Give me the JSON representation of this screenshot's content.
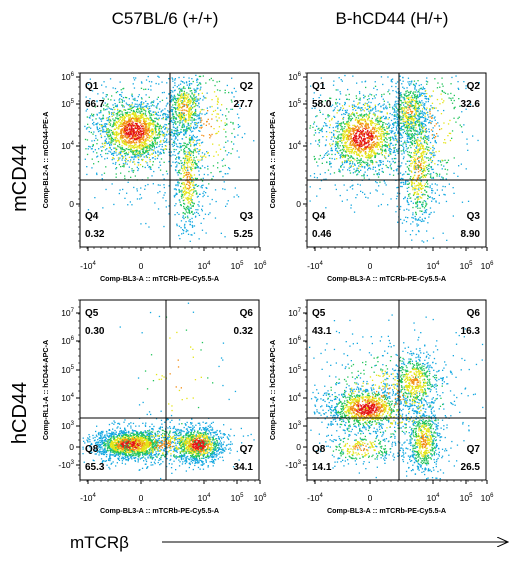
{
  "column_titles": [
    "C57BL/6 (+/+)",
    "B-hCD44 (H/+)"
  ],
  "row_titles": [
    "mCD44",
    "hCD44"
  ],
  "x_axis_arrow_label": "mTCRβ",
  "chart_data": [
    {
      "type": "scatter",
      "name": "C57BL/6 mCD44 vs mTCRb",
      "xlabel": "Comp-BL3-A :: mTCRb-PE-Cy5.5-A",
      "ylabel": "Comp-BL2-A :: mCD44-PE-A",
      "x_ticks": [
        "-10^4",
        "0",
        "10^4",
        "10^5",
        "10^6"
      ],
      "y_ticks": [
        "10^6",
        "10^5",
        "10^4",
        "0"
      ],
      "quadrants": [
        {
          "name": "Q1",
          "value": "66.7",
          "pos": "top-left"
        },
        {
          "name": "Q2",
          "value": "27.7",
          "pos": "top-right"
        },
        {
          "name": "Q3",
          "value": "5.25",
          "pos": "bottom-right"
        },
        {
          "name": "Q4",
          "value": "0.32",
          "pos": "bottom-left"
        }
      ]
    },
    {
      "type": "scatter",
      "name": "B-hCD44 mCD44 vs mTCRb",
      "xlabel": "Comp-BL3-A :: mTCRb-PE-Cy5.5-A",
      "ylabel": "Comp-BL2-A :: mCD44-PE-A",
      "x_ticks": [
        "-10^4",
        "0",
        "10^4",
        "10^5",
        "10^6"
      ],
      "y_ticks": [
        "10^6",
        "10^5",
        "10^4",
        "0"
      ],
      "quadrants": [
        {
          "name": "Q1",
          "value": "58.0",
          "pos": "top-left"
        },
        {
          "name": "Q2",
          "value": "32.6",
          "pos": "top-right"
        },
        {
          "name": "Q3",
          "value": "8.90",
          "pos": "bottom-right"
        },
        {
          "name": "Q4",
          "value": "0.46",
          "pos": "bottom-left"
        }
      ]
    },
    {
      "type": "scatter",
      "name": "C57BL/6 hCD44 vs mTCRb",
      "xlabel": "Comp-BL3-A :: mTCRb-PE-Cy5.5-A",
      "ylabel": "Comp-RL1-A :: hCD44-APC-A",
      "x_ticks": [
        "-10^4",
        "0",
        "10^4",
        "10^5",
        "10^6"
      ],
      "y_ticks": [
        "10^7",
        "10^6",
        "10^5",
        "10^4",
        "10^3",
        "0",
        "-10^3"
      ],
      "quadrants": [
        {
          "name": "Q5",
          "value": "0.30",
          "pos": "top-left"
        },
        {
          "name": "Q6",
          "value": "0.32",
          "pos": "top-right"
        },
        {
          "name": "Q7",
          "value": "34.1",
          "pos": "bottom-right"
        },
        {
          "name": "Q8",
          "value": "65.3",
          "pos": "bottom-left"
        }
      ]
    },
    {
      "type": "scatter",
      "name": "B-hCD44 hCD44 vs mTCRb",
      "xlabel": "Comp-BL3-A :: mTCRb-PE-Cy5.5-A",
      "ylabel": "Comp-RL1-A :: hCD44-APC-A",
      "x_ticks": [
        "-10^4",
        "0",
        "10^4",
        "10^5",
        "10^6"
      ],
      "y_ticks": [
        "10^7",
        "10^6",
        "10^5",
        "10^4",
        "10^3",
        "0",
        "-10^3"
      ],
      "quadrants": [
        {
          "name": "Q5",
          "value": "43.1",
          "pos": "top-left"
        },
        {
          "name": "Q6",
          "value": "16.3",
          "pos": "top-right"
        },
        {
          "name": "Q7",
          "value": "26.5",
          "pos": "bottom-right"
        },
        {
          "name": "Q8",
          "value": "14.1",
          "pos": "bottom-left"
        }
      ]
    }
  ]
}
